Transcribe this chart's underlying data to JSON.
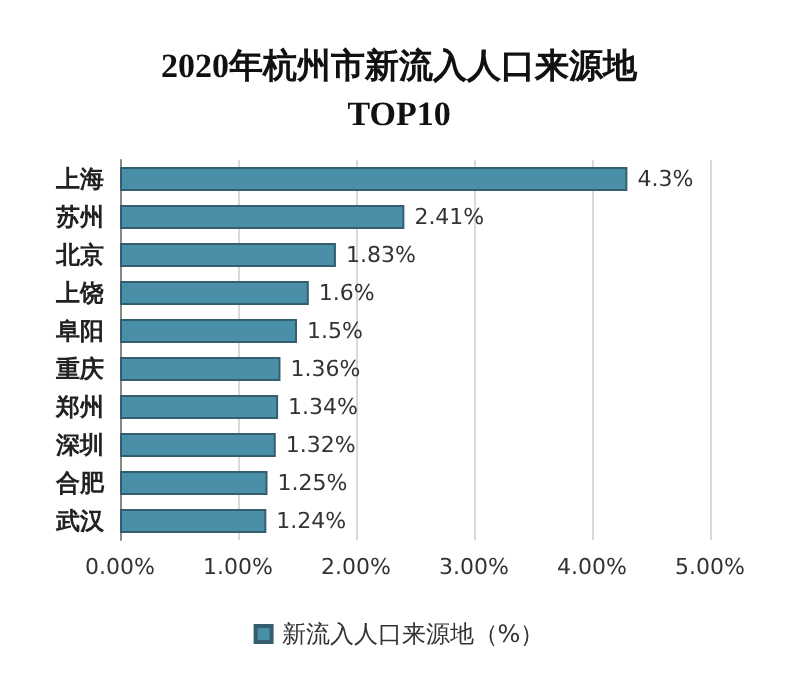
{
  "chart_data": {
    "type": "bar",
    "orientation": "horizontal",
    "title": "2020年杭州市新流入人口来源地\nTOP10",
    "categories": [
      "上海",
      "苏州",
      "北京",
      "上饶",
      "阜阳",
      "重庆",
      "郑州",
      "深圳",
      "合肥",
      "武汉"
    ],
    "series": [
      {
        "name": "新流入人口来源地（%）",
        "color": "#4a8fa8",
        "values": [
          4.3,
          2.41,
          1.83,
          1.6,
          1.5,
          1.36,
          1.34,
          1.32,
          1.25,
          1.24
        ],
        "value_labels": [
          "4.3%",
          "2.41%",
          "1.83%",
          "1.6%",
          "1.5%",
          "1.36%",
          "1.34%",
          "1.32%",
          "1.25%",
          "1.24%"
        ]
      }
    ],
    "xlim": [
      0,
      5
    ],
    "xticks": [
      {
        "value": 0,
        "label": "0.00%"
      },
      {
        "value": 1,
        "label": "1.00%"
      },
      {
        "value": 2,
        "label": "2.00%"
      },
      {
        "value": 3,
        "label": "3.00%"
      },
      {
        "value": 4,
        "label": "4.00%"
      },
      {
        "value": 5,
        "label": "5.00%"
      }
    ],
    "grid": "x",
    "legend": "bottom"
  }
}
